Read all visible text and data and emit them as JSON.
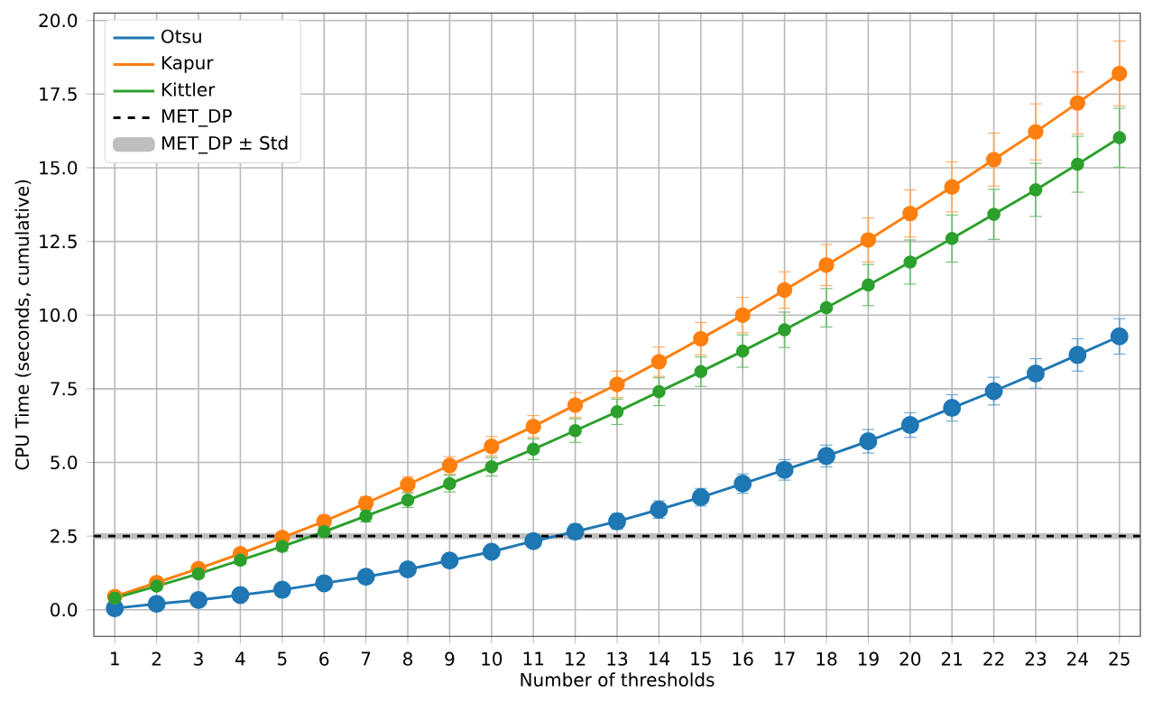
{
  "chart_data": {
    "type": "line",
    "xlabel": "Number of thresholds",
    "ylabel": "CPU Time (seconds, cumulative)",
    "x": [
      1,
      2,
      3,
      4,
      5,
      6,
      7,
      8,
      9,
      10,
      11,
      12,
      13,
      14,
      15,
      16,
      17,
      18,
      19,
      20,
      21,
      22,
      23,
      24,
      25
    ],
    "xlim": [
      0.5,
      25.5
    ],
    "ylim": [
      -0.9,
      20.25
    ],
    "xticks": [
      1,
      2,
      3,
      4,
      5,
      6,
      7,
      8,
      9,
      10,
      11,
      12,
      13,
      14,
      15,
      16,
      17,
      18,
      19,
      20,
      21,
      22,
      23,
      24,
      25
    ],
    "yticks": [
      {
        "value": 0,
        "label": "0.0"
      },
      {
        "value": 2.5,
        "label": "2.5"
      },
      {
        "value": 5,
        "label": "5.0"
      },
      {
        "value": 7.5,
        "label": "7.5"
      },
      {
        "value": 10,
        "label": "10.0"
      },
      {
        "value": 12.5,
        "label": "12.5"
      },
      {
        "value": 15,
        "label": "15.0"
      },
      {
        "value": 17.5,
        "label": "17.5"
      },
      {
        "value": 20,
        "label": "20.0"
      }
    ],
    "series": [
      {
        "name": "Otsu",
        "color": "#1f77b4",
        "values": [
          0.05,
          0.2,
          0.33,
          0.5,
          0.68,
          0.9,
          1.12,
          1.37,
          1.67,
          1.97,
          2.33,
          2.65,
          3.0,
          3.4,
          3.82,
          4.28,
          4.75,
          5.22,
          5.72,
          6.27,
          6.85,
          7.42,
          8.02,
          8.65,
          9.28
        ],
        "errors": [
          0.1,
          0.1,
          0.1,
          0.1,
          0.1,
          0.12,
          0.13,
          0.15,
          0.17,
          0.2,
          0.22,
          0.25,
          0.27,
          0.3,
          0.3,
          0.33,
          0.35,
          0.37,
          0.4,
          0.42,
          0.45,
          0.47,
          0.5,
          0.55,
          0.6
        ]
      },
      {
        "name": "Kapur",
        "color": "#ff7f0e",
        "values": [
          0.45,
          0.92,
          1.4,
          1.9,
          2.45,
          3.0,
          3.62,
          4.25,
          4.9,
          5.55,
          6.22,
          6.95,
          7.65,
          8.42,
          9.2,
          10.0,
          10.85,
          11.7,
          12.55,
          13.45,
          14.35,
          15.28,
          16.22,
          17.2,
          18.2
        ],
        "errors": [
          0.1,
          0.1,
          0.12,
          0.15,
          0.17,
          0.2,
          0.22,
          0.27,
          0.3,
          0.33,
          0.37,
          0.42,
          0.45,
          0.5,
          0.55,
          0.6,
          0.62,
          0.7,
          0.75,
          0.8,
          0.85,
          0.9,
          0.95,
          1.05,
          1.1
        ]
      },
      {
        "name": "Kittler",
        "color": "#2ca02c",
        "values": [
          0.4,
          0.8,
          1.22,
          1.68,
          2.15,
          2.65,
          3.18,
          3.72,
          4.28,
          4.85,
          5.45,
          6.08,
          6.72,
          7.4,
          8.08,
          8.78,
          9.5,
          10.25,
          11.02,
          11.8,
          12.6,
          13.42,
          14.25,
          15.12,
          16.02
        ],
        "errors": [
          0.1,
          0.1,
          0.12,
          0.14,
          0.16,
          0.18,
          0.2,
          0.25,
          0.28,
          0.31,
          0.35,
          0.4,
          0.43,
          0.47,
          0.5,
          0.55,
          0.6,
          0.65,
          0.7,
          0.75,
          0.8,
          0.85,
          0.9,
          0.95,
          1.0
        ]
      }
    ],
    "ref_lines": [
      {
        "axis": "y",
        "value": 2.5,
        "label": "MET_DP",
        "color": "#000000",
        "line_style": "dashed"
      }
    ],
    "bands": [
      {
        "axis": "y",
        "from": 2.4,
        "to": 2.6,
        "label": "MET_DP ± Std",
        "color": "#bfbfbf"
      }
    ],
    "grid": true,
    "legend": "top left",
    "marker": "circle",
    "line_style": "solid"
  }
}
